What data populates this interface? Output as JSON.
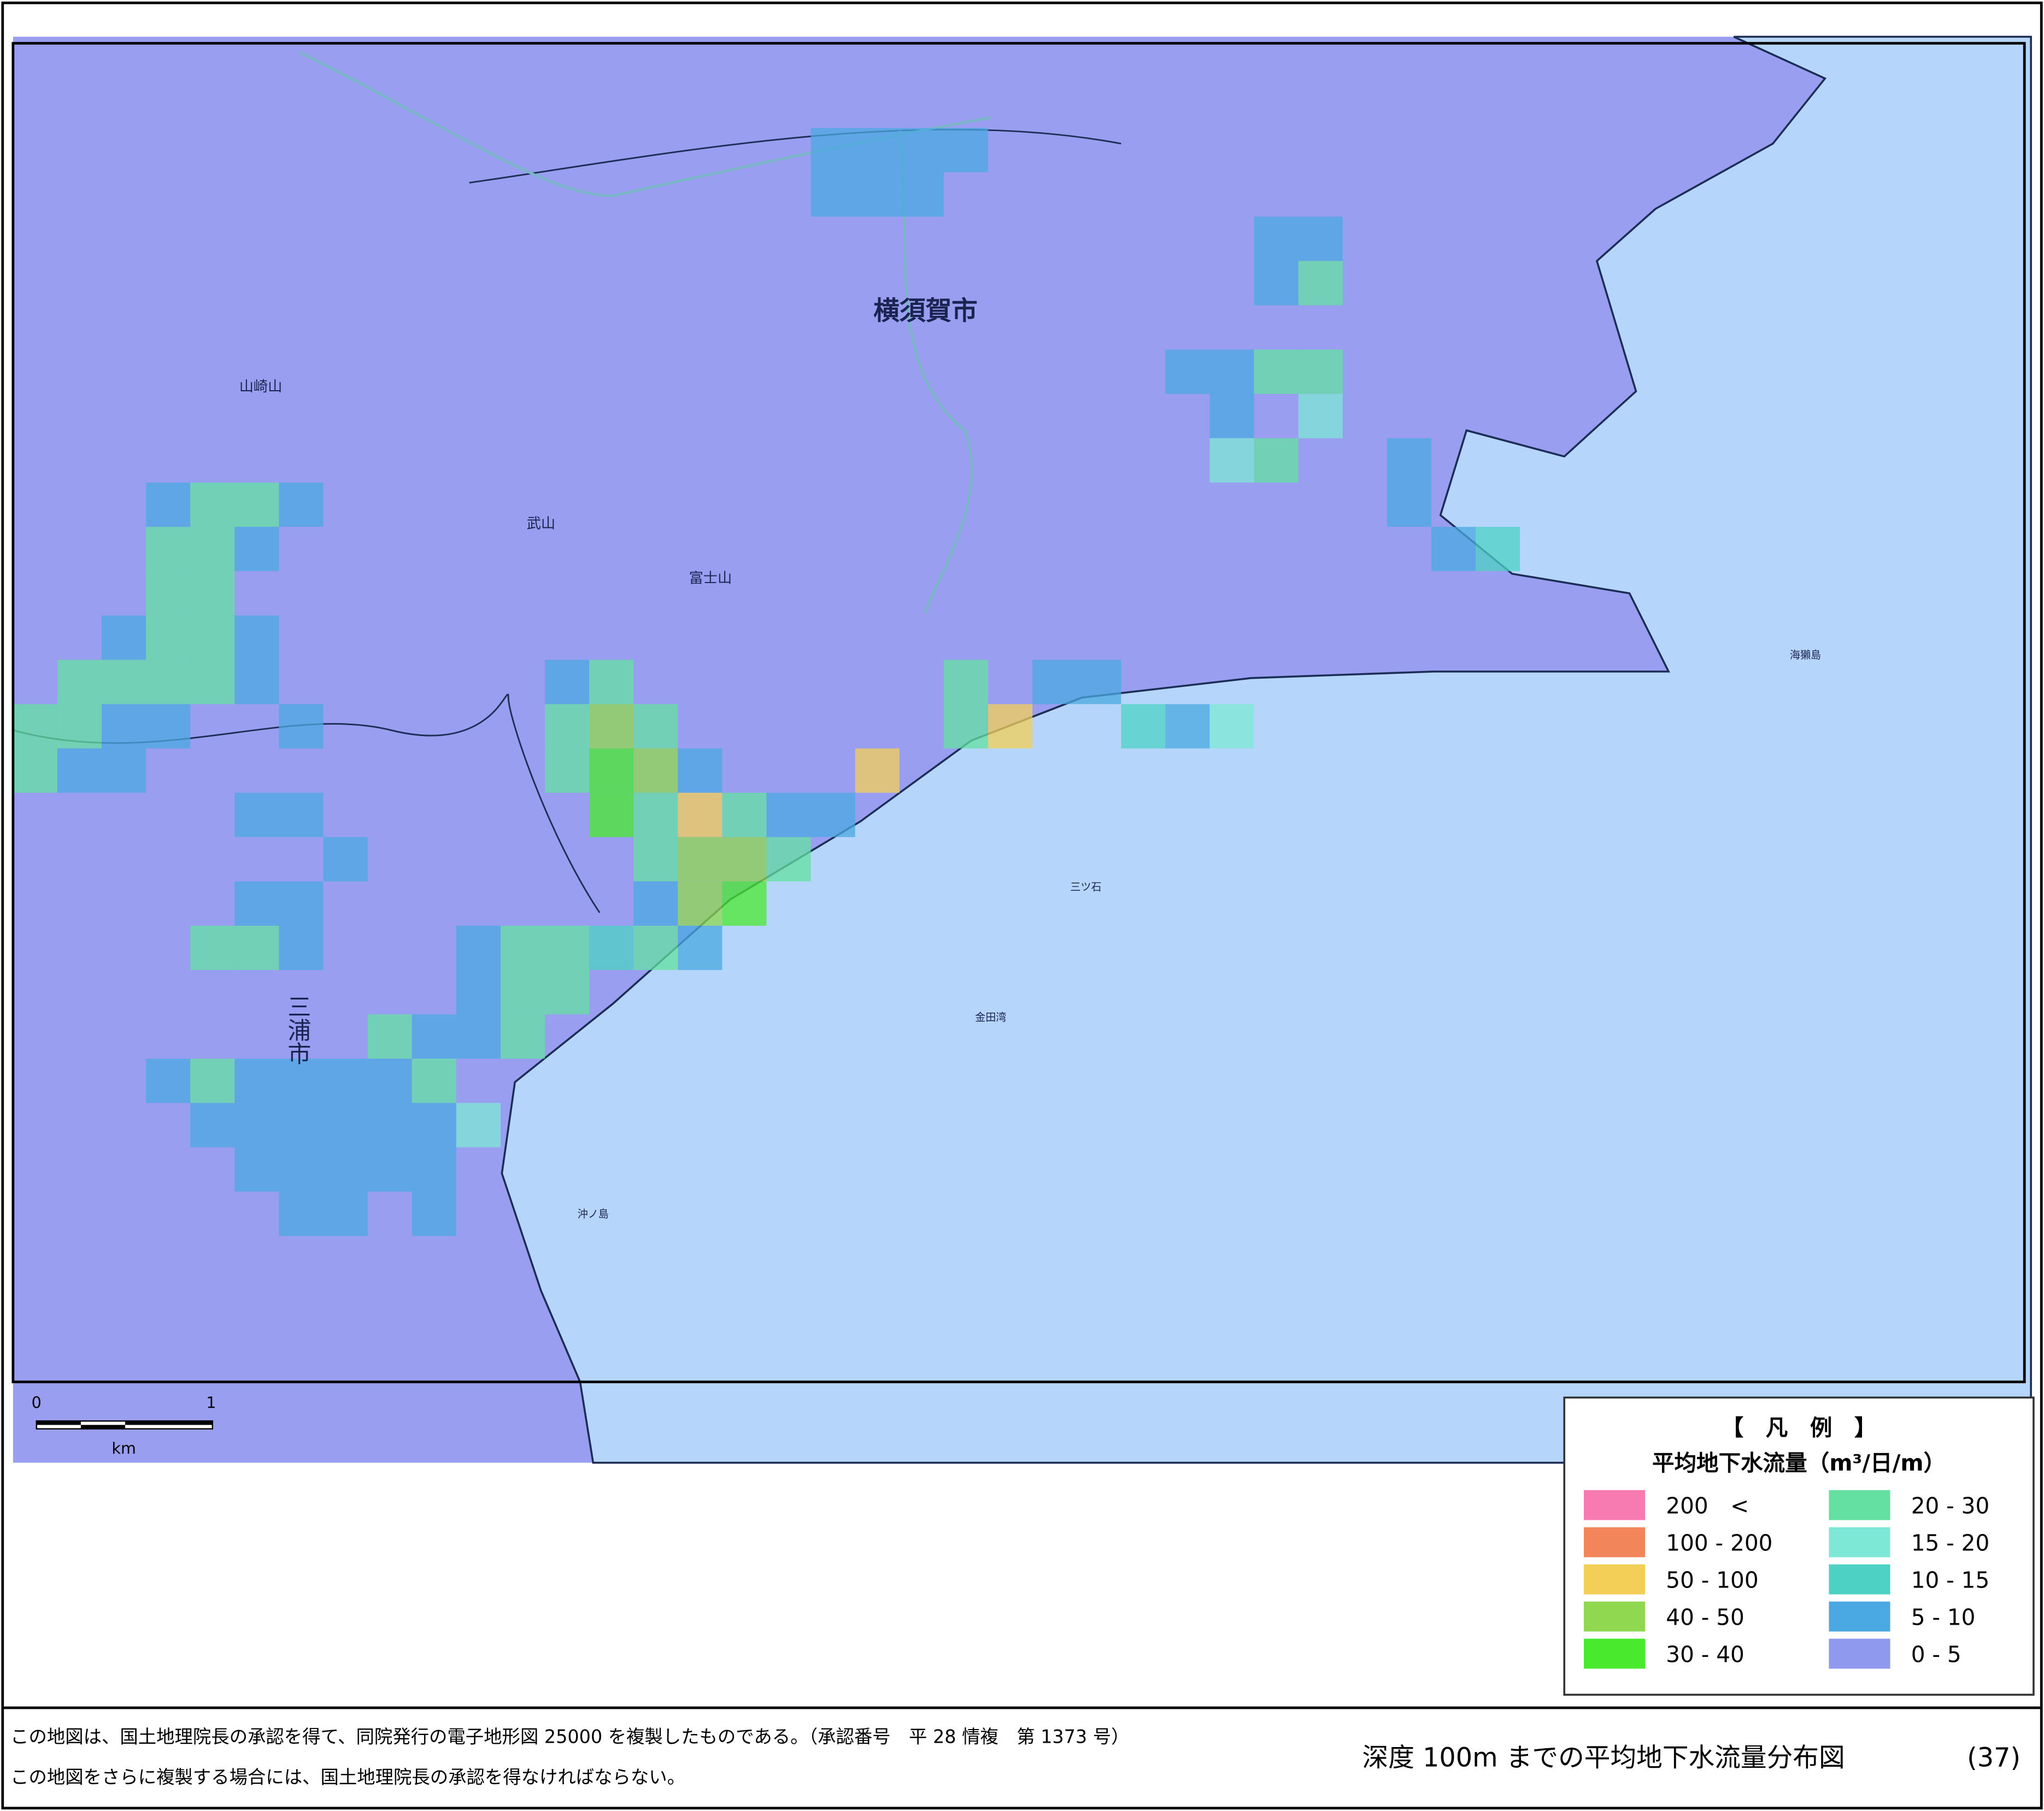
{
  "map": {
    "labels": [
      {
        "text": "横須賀市"
      },
      {
        "text": "三浦市"
      },
      {
        "text": "武山"
      },
      {
        "text": "富士山"
      },
      {
        "text": "山崎山"
      },
      {
        "text": "金田湾"
      },
      {
        "text": "三ツ石"
      },
      {
        "text": "沖ノ島"
      },
      {
        "text": "海獺島"
      }
    ],
    "scale_bar": {
      "ticks": [
        "0",
        "1"
      ],
      "unit": "km"
    }
  },
  "legend": {
    "title": "【　凡　例　】",
    "subtitle": "平均地下水流量（m³/日/m）",
    "items": [
      {
        "label": "200　<",
        "color": "#f77ab0"
      },
      {
        "label": "100 - 200",
        "color": "#f2865a"
      },
      {
        "label": "50 - 100",
        "color": "#f3cf57"
      },
      {
        "label": "40 - 50",
        "color": "#8fd84f"
      },
      {
        "label": "30 - 40",
        "color": "#49ea2e"
      },
      {
        "label": "20 - 30",
        "color": "#63e0a2"
      },
      {
        "label": "15 - 20",
        "color": "#7de8d6"
      },
      {
        "label": "10 - 15",
        "color": "#4cd1c4"
      },
      {
        "label": "5 - 10",
        "color": "#4aa8e2"
      },
      {
        "label": "0 - 5",
        "color": "#8f99ee"
      }
    ]
  },
  "footer": {
    "notes": [
      "この地図は、国土地理院長の承認を得て、同院発行の電子地形図 25000 を複製したものである。（承認番号　平 28 情複　第 1373 号）",
      "この地図をさらに複製する場合には、国土地理院長の承認を得なければならない。"
    ],
    "title": "深度 100m までの平均地下水流量分布図",
    "page": "(37)"
  }
}
